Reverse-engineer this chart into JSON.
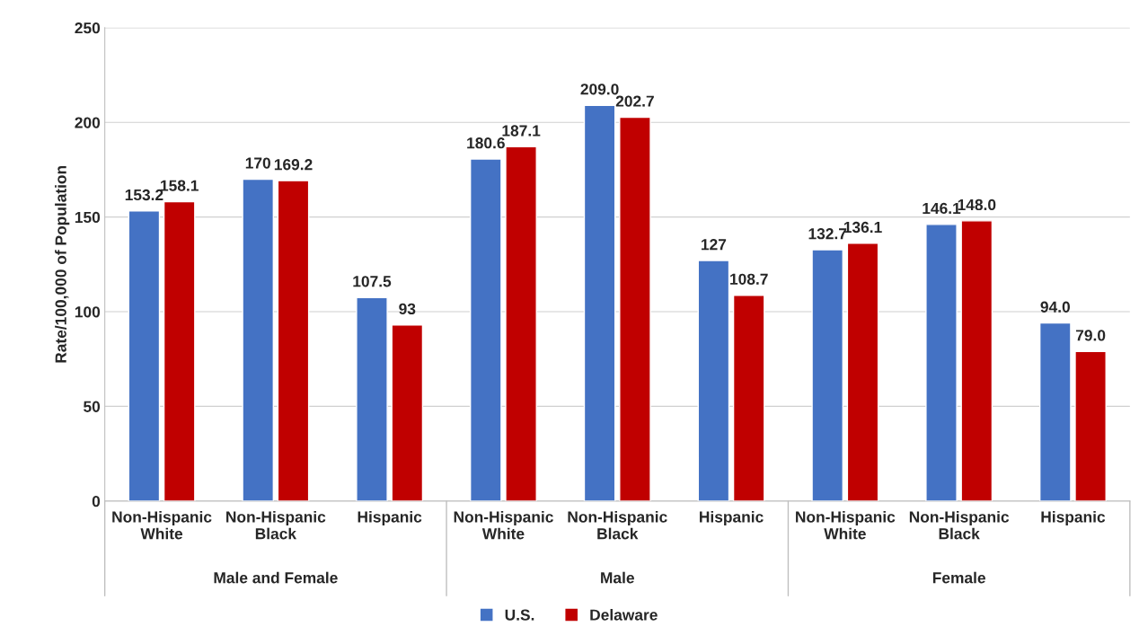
{
  "chart_data": {
    "type": "bar",
    "categories": [
      "Non-Hispanic\nWhite",
      "Non-Hispanic\nBlack",
      "Hispanic",
      "Non-Hispanic\nWhite",
      "Non-Hispanic\nBlack",
      "Hispanic",
      "Non-Hispanic\nWhite",
      "Non-Hispanic\nBlack",
      "Hispanic"
    ],
    "series": [
      {
        "name": "U.S.",
        "color": "#4472c4",
        "values": [
          153.2,
          170,
          107.5,
          180.6,
          209.0,
          127,
          132.7,
          146.1,
          94.0
        ],
        "value_labels": [
          "153.2",
          "170",
          "107.5",
          "180.6",
          "209.0",
          "127",
          "132.7",
          "146.1",
          "94.0"
        ]
      },
      {
        "name": "Delaware",
        "color": "#c00000",
        "values": [
          158.1,
          169.2,
          93,
          187.1,
          202.7,
          108.7,
          136.1,
          148.0,
          79.0
        ],
        "value_labels": [
          "158.1",
          "169.2",
          "93",
          "187.1",
          "202.7",
          "108.7",
          "136.1",
          "148.0",
          "79.0"
        ]
      }
    ],
    "annotations": [
      "Male and Female",
      "Male",
      "Female"
    ],
    "ylabel": "Rate/100,000 of Population",
    "ylim": [
      0,
      250
    ],
    "yticks": [
      0,
      50,
      100,
      150,
      200,
      250
    ],
    "grid": "y",
    "legend": "bottom"
  }
}
